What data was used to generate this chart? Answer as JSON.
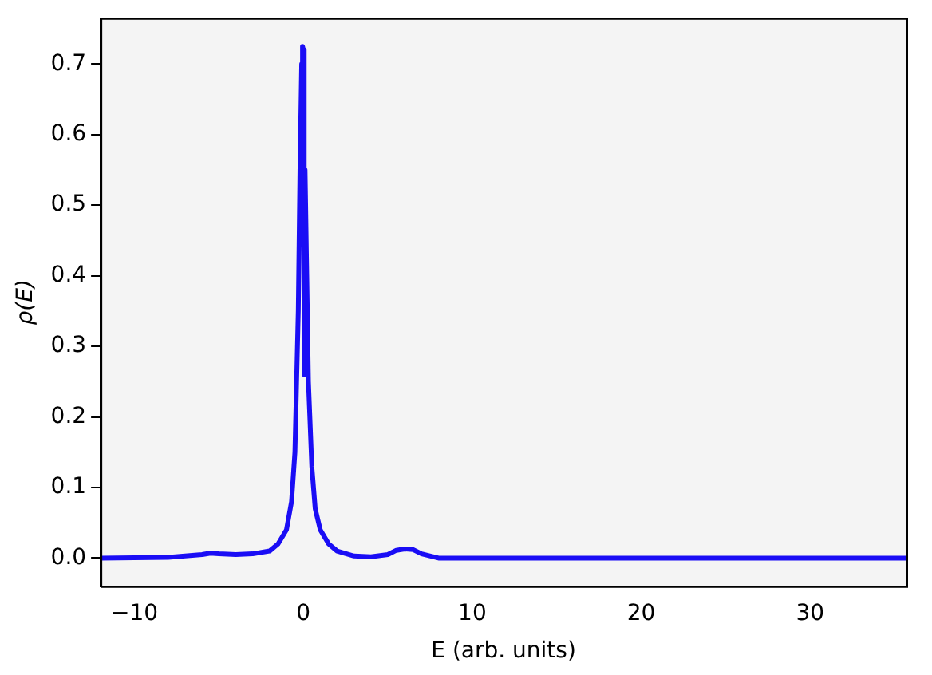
{
  "chart_data": {
    "type": "line",
    "xlabel": "E (arb. units)",
    "ylabel": "ρ(E)",
    "x": [
      -12,
      -8,
      -6,
      -5.5,
      -5,
      -4,
      -3,
      -2,
      -1.5,
      -1,
      -0.7,
      -0.5,
      -0.3,
      -0.2,
      -0.1,
      -0.05,
      0,
      0.05,
      0.1,
      0.2,
      0.3,
      0.5,
      0.7,
      1,
      1.5,
      2,
      3,
      4,
      5,
      5.5,
      6,
      6.5,
      7,
      8,
      15,
      35.7
    ],
    "series": [
      {
        "color": "#1a0df5",
        "values": [
          0,
          0.001,
          0.005,
          0.007,
          0.006,
          0.005,
          0.006,
          0.01,
          0.02,
          0.04,
          0.08,
          0.15,
          0.35,
          0.55,
          0.7,
          0.725,
          0.72,
          0.26,
          0.55,
          0.4,
          0.25,
          0.13,
          0.07,
          0.04,
          0.02,
          0.01,
          0.003,
          0.002,
          0.005,
          0.011,
          0.013,
          0.012,
          0.006,
          0,
          0,
          0
        ]
      }
    ],
    "xlim": [
      -12,
      35.7
    ],
    "xticks": [
      -10,
      0,
      10,
      20,
      30
    ],
    "ylim": [
      -0.04,
      0.765
    ],
    "yticks": [
      {
        "value": 0,
        "label": "0.0"
      },
      0.1,
      0.2,
      0.3,
      0.4,
      0.5,
      0.6,
      0.7
    ],
    "grid": false,
    "legend": false,
    "marker": "none",
    "line_style": "solid"
  }
}
